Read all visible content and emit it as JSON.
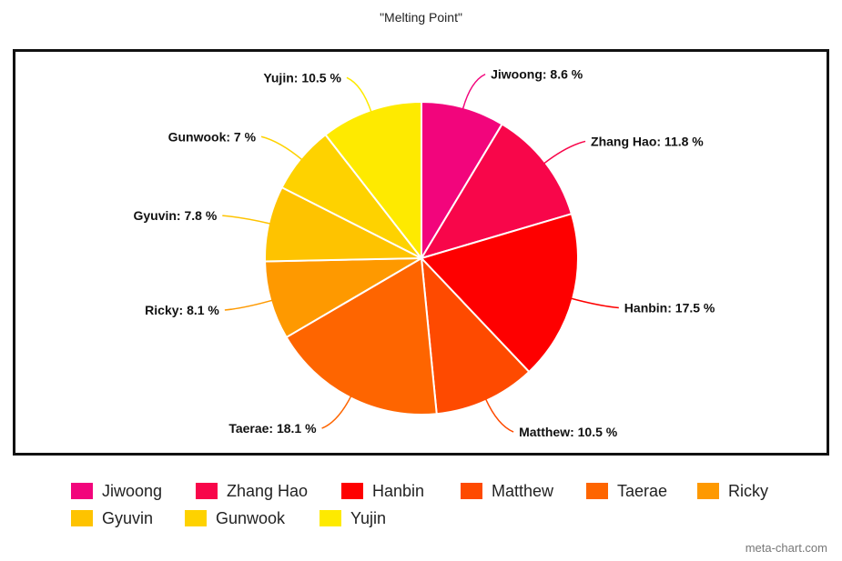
{
  "chart_data": {
    "type": "pie",
    "title": "\"Melting Point\"",
    "slices": [
      {
        "label": "Jiwoong",
        "value": 8.6,
        "display": "Jiwoong: 8.6 %",
        "color": "#F2057C"
      },
      {
        "label": "Zhang Hao",
        "value": 11.8,
        "display": "Zhang Hao: 11.8 %",
        "color": "#F8064A"
      },
      {
        "label": "Hanbin",
        "value": 17.5,
        "display": "Hanbin: 17.5 %",
        "color": "#FE0000"
      },
      {
        "label": "Matthew",
        "value": 10.5,
        "display": "Matthew: 10.5 %",
        "color": "#FE4A00"
      },
      {
        "label": "Taerae",
        "value": 18.1,
        "display": "Taerae: 18.1 %",
        "color": "#FE6500"
      },
      {
        "label": "Ricky",
        "value": 8.1,
        "display": "Ricky: 8.1 %",
        "color": "#FE9900"
      },
      {
        "label": "Gyuvin",
        "value": 7.8,
        "display": "Gyuvin: 7.8 %",
        "color": "#FEC300"
      },
      {
        "label": "Gunwook",
        "value": 7.0,
        "display": "Gunwook: 7 %",
        "color": "#FED200"
      },
      {
        "label": "Yujin",
        "value": 10.5,
        "display": "Yujin: 10.5 %",
        "color": "#FEEA00"
      }
    ],
    "legend_position": "bottom"
  },
  "watermark": "meta-chart.com"
}
